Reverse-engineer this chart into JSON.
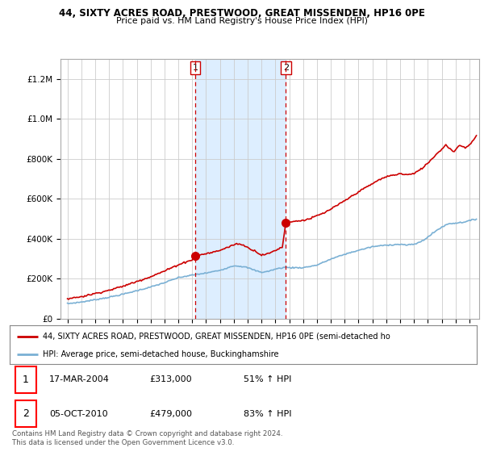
{
  "title1": "44, SIXTY ACRES ROAD, PRESTWOOD, GREAT MISSENDEN, HP16 0PE",
  "title2": "Price paid vs. HM Land Registry's House Price Index (HPI)",
  "legend_red": "44, SIXTY ACRES ROAD, PRESTWOOD, GREAT MISSENDEN, HP16 0PE (semi-detached ho",
  "legend_blue": "HPI: Average price, semi-detached house, Buckinghamshire",
  "footnote": "Contains HM Land Registry data © Crown copyright and database right 2024.\nThis data is licensed under the Open Government Licence v3.0.",
  "transactions": [
    {
      "num": 1,
      "date": "17-MAR-2004",
      "price": "£313,000",
      "pct": "51% ↑ HPI",
      "year": 2004.21
    },
    {
      "num": 2,
      "date": "05-OCT-2010",
      "price": "£479,000",
      "pct": "83% ↑ HPI",
      "year": 2010.75
    }
  ],
  "ylim": [
    0,
    1300000
  ],
  "xlim": [
    1994.5,
    2024.7
  ],
  "background_color": "#ffffff",
  "grid_color": "#cccccc",
  "red_color": "#cc0000",
  "blue_color": "#7ab0d4",
  "dashed_color": "#cc0000",
  "shaded_color": "#ddeeff"
}
